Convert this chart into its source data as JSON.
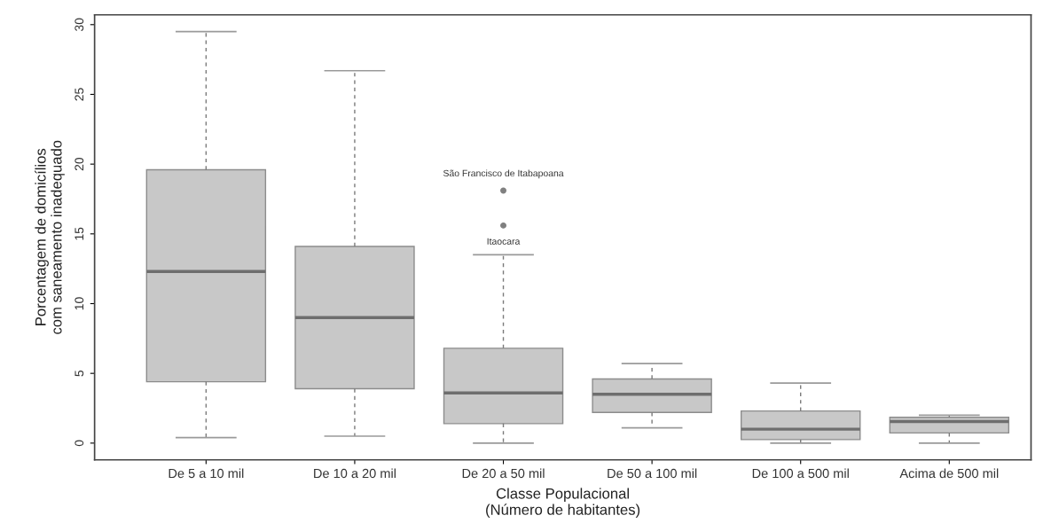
{
  "chart_data": {
    "type": "box",
    "xlabel": "Classe Populacional\n(Número de habitantes)",
    "ylabel": "Porcentagem de domicílios\ncom saneamento inadequado",
    "categories": [
      "De 5 a 10 mil",
      "De 10 a 20 mil",
      "De 20 a 50 mil",
      "De 50 a 100 mil",
      "De 100 a 500 mil",
      "Acima de 500 mil"
    ],
    "boxes": [
      {
        "low": 0.4,
        "q1": 4.4,
        "median": 12.3,
        "q3": 19.6,
        "high": 29.5
      },
      {
        "low": 0.5,
        "q1": 3.9,
        "median": 9.0,
        "q3": 14.1,
        "high": 26.7
      },
      {
        "low": 0.0,
        "q1": 1.4,
        "median": 3.6,
        "q3": 6.8,
        "high": 13.5,
        "outliers": [
          18.1,
          15.6
        ]
      },
      {
        "low": 1.1,
        "q1": 2.2,
        "median": 3.5,
        "q3": 4.6,
        "high": 5.7
      },
      {
        "low": 0.0,
        "q1": 0.25,
        "median": 1.0,
        "q3": 2.3,
        "high": 4.3
      },
      {
        "low": 0.0,
        "q1": 0.73,
        "median": 1.55,
        "q3": 1.85,
        "high": 2.0
      }
    ],
    "color": "#c8c8c8",
    "ylim": [
      -1.2,
      30.7
    ],
    "yticks": [
      0,
      5,
      10,
      15,
      20,
      25,
      30
    ],
    "annotations": [
      "São Francisco de Itabapoana",
      "Itaocara"
    ],
    "grid": false,
    "legend": false
  }
}
